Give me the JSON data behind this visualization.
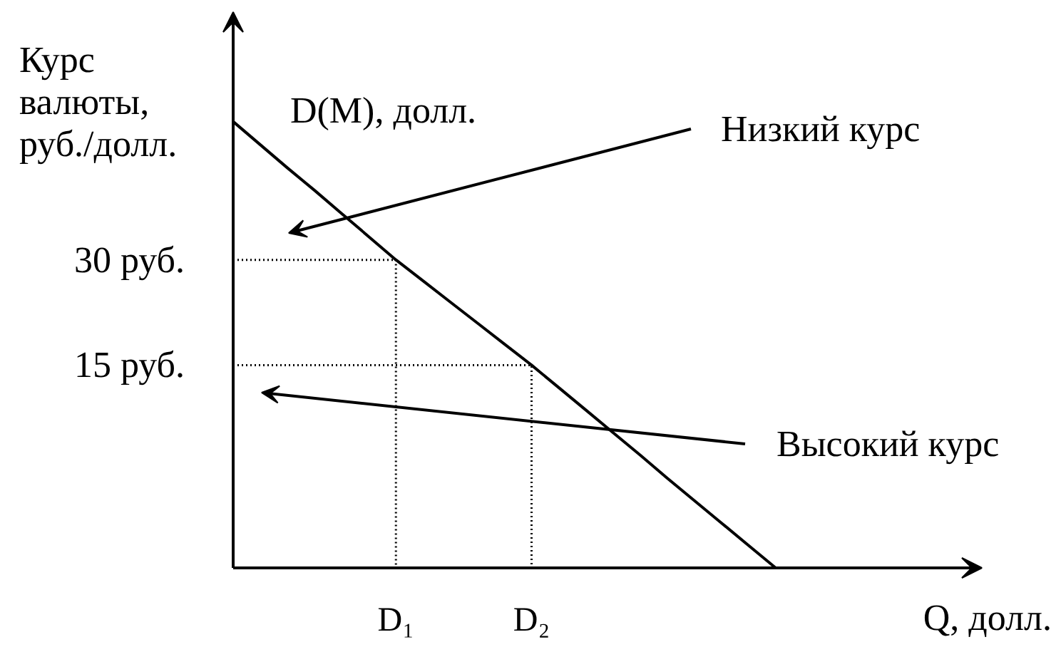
{
  "chart_data": {
    "type": "line",
    "ylabel": "Курс валюты, руб./долл.",
    "xlabel": "Q, долл.",
    "categories": [
      null,
      null,
      null,
      null,
      null,
      null,
      "D₁",
      null,
      null,
      null,
      null,
      "D₂",
      null,
      null,
      null,
      null,
      null,
      null,
      null,
      null,
      null
    ],
    "ylim": [
      -13.9,
      65.3
    ],
    "yticks": [
      {
        "value": 15,
        "label": "15 руб."
      },
      {
        "value": 30,
        "label": "30 руб."
      }
    ],
    "grid": false,
    "marker": "none",
    "series": [
      {
        "name": "D(M), долл.",
        "color": "#000000",
        "line_style": "solid",
        "values": [
          49.7,
          46.4,
          43.1,
          39.9,
          36.6,
          33.3,
          30,
          27,
          24,
          21,
          18,
          15,
          11.8,
          8.6,
          5.4,
          2.2,
          -1.1,
          -4.3,
          -7.5,
          -10.7,
          -13.9
        ]
      },
      {
        "type": "step",
        "color": "#000000",
        "line_style": "dotted",
        "values": [
          30,
          30,
          30,
          30,
          30,
          30,
          -13.9,
          null,
          null,
          null,
          null,
          null,
          null,
          null,
          null,
          null,
          null,
          null,
          null,
          null,
          null
        ]
      },
      {
        "type": "step",
        "color": "#000000",
        "line_style": "dotted",
        "values": [
          15,
          15,
          15,
          15,
          15,
          15,
          15,
          15,
          15,
          15,
          15,
          -13.9,
          null,
          null,
          null,
          null,
          null,
          null,
          null,
          null,
          null
        ]
      }
    ],
    "annotations": [
      "Низкий курс",
      "Высокий курс"
    ]
  }
}
